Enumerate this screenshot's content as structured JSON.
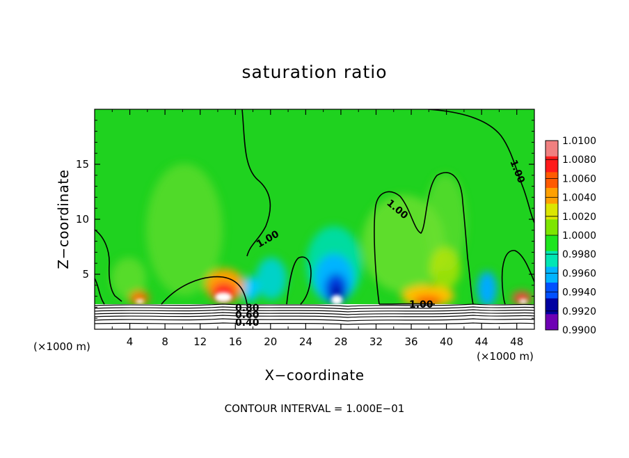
{
  "chart_data": {
    "type": "heatmap",
    "title": "saturation ratio",
    "xlabel": "X−coordinate",
    "ylabel": "Z−coordinate",
    "x_unit_left": "(×1000 m)",
    "x_unit_right": "(×1000 m)",
    "xlim": [
      0,
      50
    ],
    "ylim": [
      0,
      20
    ],
    "x_ticks": [
      "4",
      "8",
      "12",
      "16",
      "20",
      "24",
      "28",
      "32",
      "36",
      "40",
      "44",
      "48"
    ],
    "x_tick_values": [
      4,
      8,
      12,
      16,
      20,
      24,
      28,
      32,
      36,
      40,
      44,
      48
    ],
    "y_ticks": [
      "5",
      "10",
      "15"
    ],
    "y_tick_values": [
      5,
      10,
      15
    ],
    "footer": "CONTOUR INTERVAL = 1.000E−01",
    "contour_labels": [
      "1.00",
      "1.00",
      "1.00",
      "1.00",
      "0.80",
      "0.60",
      "0.40"
    ],
    "colorbar": {
      "labels": [
        "1.0100",
        "1.0080",
        "1.0060",
        "1.0040",
        "1.0020",
        "1.0000",
        "0.9980",
        "0.9960",
        "0.9940",
        "0.9920",
        "0.9900"
      ],
      "colors": [
        "#f08080",
        "#ff1a1a",
        "#ff5a00",
        "#ffa000",
        "#dce600",
        "#7de600",
        "#1ee61e",
        "#00e6b4",
        "#00b4ff",
        "#0050ff",
        "#0000a0",
        "#6e00b4"
      ]
    },
    "features": [
      {
        "kind": "dry_anomaly",
        "x": 27.5,
        "z": 3.5,
        "value": 0.992
      },
      {
        "kind": "moist_anomaly",
        "x": 14.5,
        "z": 2.8,
        "value": 1.008
      },
      {
        "kind": "moist_anomaly",
        "x": 5,
        "z": 2.5,
        "value": 1.006
      },
      {
        "kind": "moist_anomaly",
        "x": 39,
        "z": 2.6,
        "value": 1.006
      },
      {
        "kind": "moist_anomaly",
        "x": 48.5,
        "z": 2.6,
        "value": 1.008
      },
      {
        "kind": "dry_anomaly",
        "x": 22,
        "z": 4,
        "value": 0.996
      },
      {
        "kind": "dry_anomaly",
        "x": 44,
        "z": 3,
        "value": 0.995
      }
    ]
  }
}
